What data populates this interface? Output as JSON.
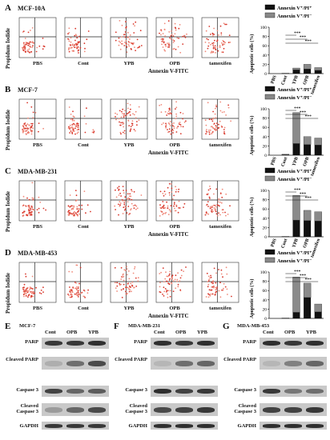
{
  "panels": [
    {
      "letter": "A",
      "cell": "MCF-10A",
      "ylabel": "Propidum Iodide",
      "xlabel": "Annexin V-FITC",
      "conditions": [
        "PBS",
        "Cont",
        "YPB",
        "OPB",
        "tamoxifen"
      ],
      "bar_ylabel": "Apoptotic cells (%)"
    },
    {
      "letter": "B",
      "cell": "MCF-7",
      "ylabel": "Propidum Iodide",
      "xlabel": "Annexin V-FITC",
      "conditions": [
        "PBS",
        "Cont",
        "YPB",
        "OPB",
        "tamoxifen"
      ],
      "bar_ylabel": "Apoptotic cells (%)"
    },
    {
      "letter": "C",
      "cell": "MDA-MB-231",
      "ylabel": "Propidum Iodide",
      "xlabel": "Annexin V-FITC",
      "conditions": [
        "PBS",
        "Cont",
        "YPB",
        "OPB",
        "tamoxifen"
      ],
      "bar_ylabel": "Apoptotic cells (%)"
    },
    {
      "letter": "D",
      "cell": "MDA-MB-453",
      "ylabel": "Propidum Iodide",
      "xlabel": "Annexin V-FITC",
      "conditions": [
        "PBS",
        "Cont",
        "YPB",
        "OPB",
        "tamoxifen"
      ],
      "bar_ylabel": "Apoptotic cells (%)"
    }
  ],
  "legend": {
    "dark": "Annexin V⁺/PI⁺",
    "light": "Annexin V⁺/PI⁻"
  },
  "significance": "***",
  "chart_data": [
    {
      "type": "bar",
      "stacked": true,
      "categories": [
        "PBS",
        "Cont",
        "YPB",
        "OPB",
        "tamoxifen"
      ],
      "ylim": [
        0,
        100
      ],
      "yticks": [
        0,
        20,
        40,
        60,
        80,
        100
      ],
      "series": [
        {
          "name": "Annexin V⁺/PI⁺",
          "values": [
            0,
            0,
            8,
            10,
            7
          ]
        },
        {
          "name": "Annexin V⁺/PI⁻",
          "values": [
            0,
            1,
            4,
            10,
            6
          ]
        }
      ]
    },
    {
      "type": "bar",
      "stacked": true,
      "categories": [
        "PBS",
        "Cont",
        "YPB",
        "OPB",
        "tamoxifen"
      ],
      "ylim": [
        0,
        100
      ],
      "yticks": [
        0,
        20,
        40,
        60,
        80,
        100
      ],
      "series": [
        {
          "name": "Annexin V⁺/PI⁺",
          "values": [
            0,
            1,
            25,
            23,
            22
          ]
        },
        {
          "name": "Annexin V⁺/PI⁻",
          "values": [
            0,
            1,
            67,
            17,
            15
          ]
        }
      ]
    },
    {
      "type": "bar",
      "stacked": true,
      "categories": [
        "PBS",
        "Cont",
        "YPB",
        "OPB",
        "tamoxifen"
      ],
      "ylim": [
        0,
        100
      ],
      "yticks": [
        0,
        20,
        40,
        60,
        80,
        100
      ],
      "series": [
        {
          "name": "Annexin V⁺/PI⁺",
          "values": [
            0,
            0,
            36,
            35,
            34
          ]
        },
        {
          "name": "Annexin V⁺/PI⁻",
          "values": [
            0,
            1,
            53,
            22,
            20
          ]
        }
      ]
    },
    {
      "type": "bar",
      "stacked": true,
      "categories": [
        "PBS",
        "Cont",
        "YPB",
        "OPB",
        "tamoxifen"
      ],
      "ylim": [
        0,
        100
      ],
      "yticks": [
        0,
        20,
        40,
        60,
        80,
        100
      ],
      "series": [
        {
          "name": "Annexin V⁺/PI⁺",
          "values": [
            0,
            0,
            13,
            45,
            14
          ]
        },
        {
          "name": "Annexin V⁺/PI⁻",
          "values": [
            0,
            1,
            76,
            31,
            17
          ]
        }
      ]
    }
  ],
  "blots": [
    {
      "letter": "E",
      "cell": "MCF-7",
      "lanes": [
        "Cont",
        "OPB",
        "YPB"
      ]
    },
    {
      "letter": "F",
      "cell": "MDA-MB-231",
      "lanes": [
        "Cont",
        "OPB",
        "YPB"
      ]
    },
    {
      "letter": "G",
      "cell": "MDA-MB-453",
      "lanes": [
        "Cont",
        "OPB",
        "YPB"
      ]
    }
  ],
  "blot_rows": [
    "PARP",
    "Cleaved PARP",
    "Caspase 3",
    "Cleaved Caspase 3",
    "GAPDH"
  ]
}
